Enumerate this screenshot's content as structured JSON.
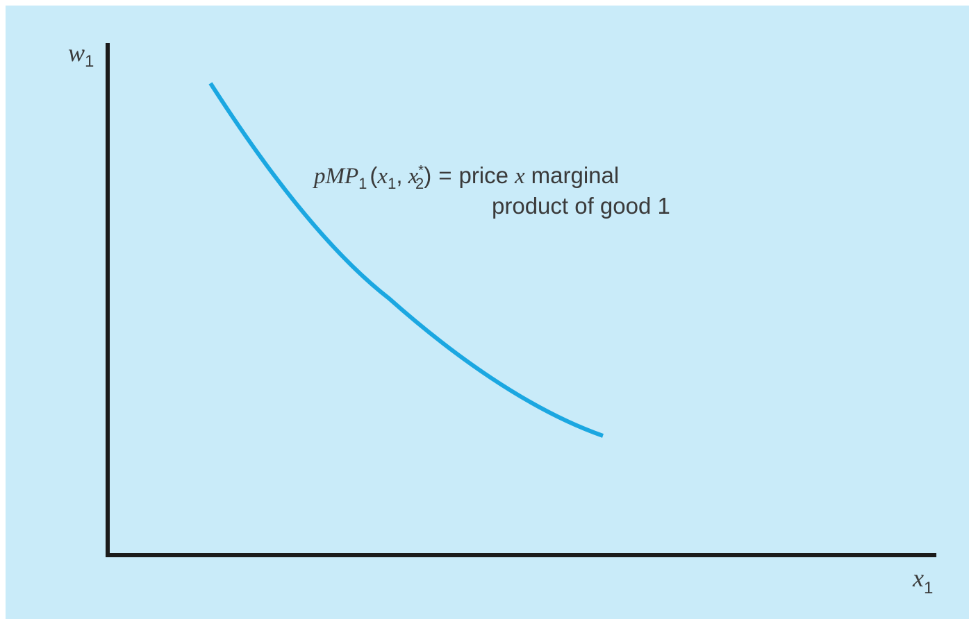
{
  "axes": {
    "y_label": {
      "base": "w",
      "sub": "1"
    },
    "x_label": {
      "base": "x",
      "sub": "1"
    }
  },
  "annotation": {
    "function": {
      "name": "pMP",
      "name_sub": "1",
      "open": "(",
      "arg1": "x",
      "arg1_sub": "1",
      "sep": ",",
      "arg2": "x",
      "arg2_sup": "*",
      "arg2_sub": "2",
      "close": ")"
    },
    "equals": "=",
    "line1": [
      "price",
      "x",
      "marginal"
    ],
    "line2": "product of good 1"
  }
}
